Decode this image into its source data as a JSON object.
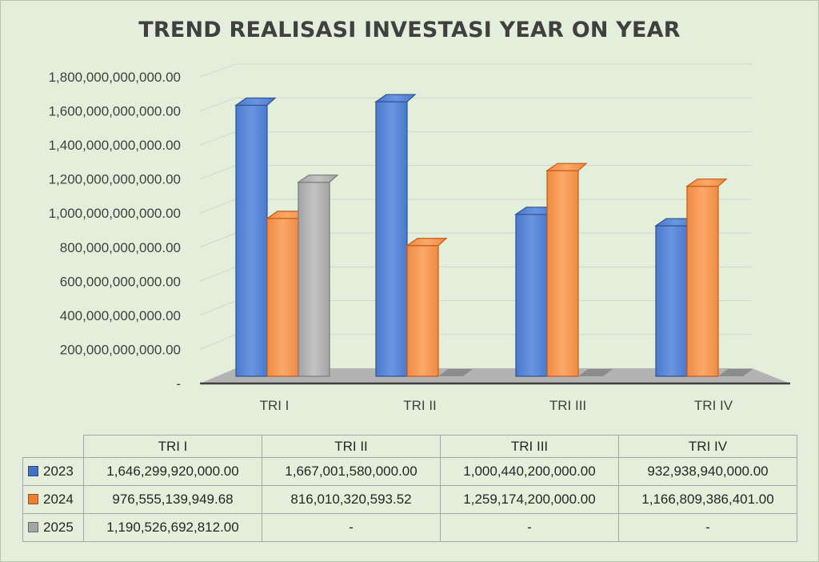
{
  "chart_data": {
    "type": "bar",
    "title": "TREND REALISASI INVESTASI YEAR ON YEAR",
    "categories": [
      "TRI I",
      "TRI II",
      "TRI III",
      "TRI IV"
    ],
    "y_ticks": [
      "-",
      "200,000,000,000.00",
      "400,000,000,000.00",
      "600,000,000,000.00",
      "800,000,000,000.00",
      "1,000,000,000,000.00",
      "1,200,000,000,000.00",
      "1,400,000,000,000.00",
      "1,600,000,000,000.00",
      "1,800,000,000,000.00"
    ],
    "ylim": [
      0,
      1800000000000
    ],
    "grid": true,
    "legend": "in data table below chart",
    "series": [
      {
        "name": "2023",
        "color": "#4472c4",
        "values": [
          1646299920000.0,
          1667001580000.0,
          1000440200000.0,
          932938940000.0
        ],
        "labels": [
          "1,646,299,920,000.00",
          "1,667,001,580,000.00",
          "1,000,440,200,000.00",
          "932,938,940,000.00"
        ]
      },
      {
        "name": "2024",
        "color": "#ed7d31",
        "values": [
          976555139949.68,
          816010320593.52,
          1259174200000.0,
          1166809386401.0
        ],
        "labels": [
          "976,555,139,949.68",
          "816,010,320,593.52",
          "1,259,174,200,000.00",
          "1,166,809,386,401.00"
        ]
      },
      {
        "name": "2025",
        "color": "#a5a5a5",
        "values": [
          1190526692812.0,
          null,
          null,
          null
        ],
        "labels": [
          "1,190,526,692,812.00",
          "-",
          "-",
          "-"
        ]
      }
    ]
  }
}
